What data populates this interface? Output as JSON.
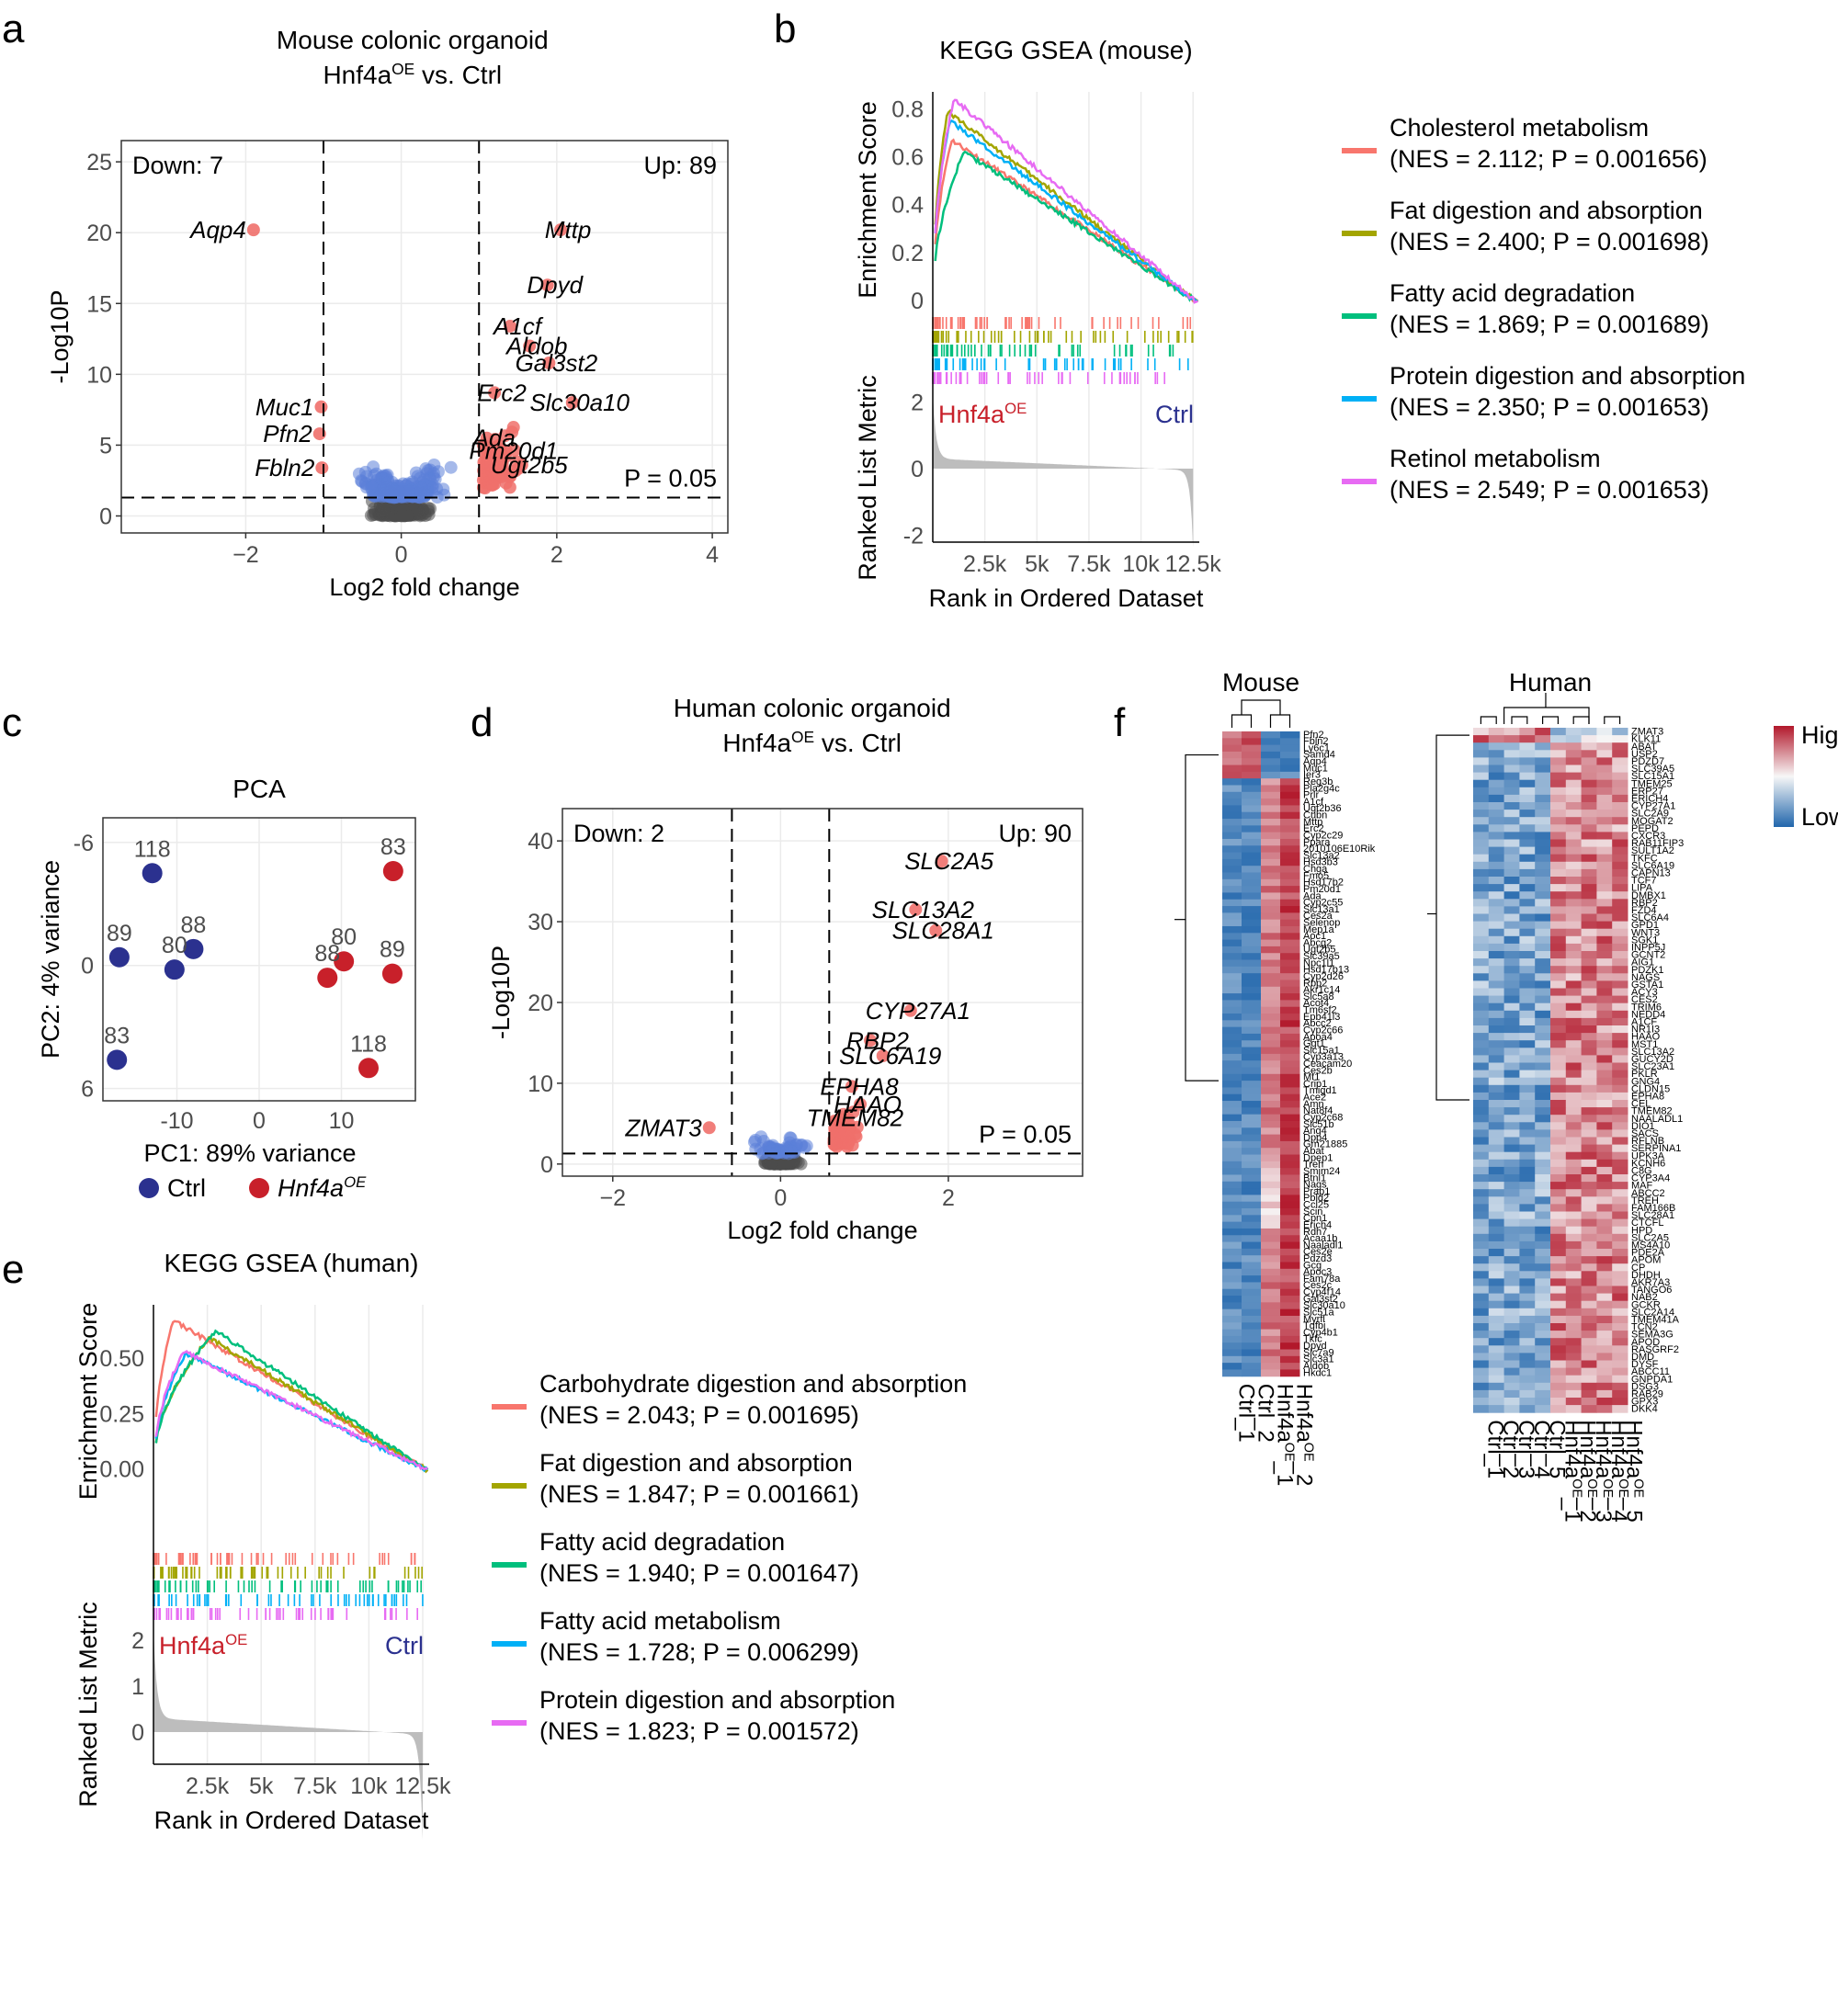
{
  "panel_labels": {
    "a": "a",
    "b": "b",
    "c": "c",
    "d": "d",
    "e": "e",
    "f": "f"
  },
  "colors": {
    "ctrl_blue": "#2b318f",
    "oe_red": "#c8202a",
    "up": "#f0706b",
    "down": "#5b80d9",
    "ns": "#4d4d4d",
    "c_red": "#f8766d",
    "c_olive": "#a3a500",
    "c_green": "#00bf7d",
    "c_blue": "#00b0f6",
    "c_pink": "#e76bf3"
  },
  "chart_data": [
    {
      "id": "a",
      "type": "scatter",
      "title_line1": "Mouse colonic organoid",
      "title_line2_pre": "Hnf4a",
      "title_line2_sup": "OE",
      "title_line2_post": " vs. Ctrl",
      "xlabel": "Log2 fold change",
      "ylabel": "-Log10P",
      "xlim": [
        -3.6,
        4.2
      ],
      "ylim": [
        -1.2,
        26.5
      ],
      "xticks": [
        -2,
        0,
        2,
        4
      ],
      "yticks": [
        0,
        5,
        10,
        15,
        20,
        25
      ],
      "down_text": "Down: 7",
      "up_text": "Up: 89",
      "p_text": "P = 0.05",
      "thresholds": {
        "fc": [
          -1,
          1
        ],
        "p": 1.3
      },
      "labeled_genes": [
        {
          "name": "Aqp4",
          "x": -1.9,
          "y": 20.2
        },
        {
          "name": "Muc1",
          "x": -1.03,
          "y": 7.7
        },
        {
          "name": "Pfn2",
          "x": -1.05,
          "y": 5.8
        },
        {
          "name": "Fbln2",
          "x": -1.02,
          "y": 3.4
        },
        {
          "name": "Mttp",
          "x": 2.05,
          "y": 20.2
        },
        {
          "name": "Dpyd",
          "x": 1.88,
          "y": 16.3
        },
        {
          "name": "A1cf",
          "x": 1.4,
          "y": 13.4
        },
        {
          "name": "Aldob",
          "x": 1.65,
          "y": 12.0
        },
        {
          "name": "Gal3st2",
          "x": 1.9,
          "y": 10.8
        },
        {
          "name": "Erc2",
          "x": 1.2,
          "y": 8.7
        },
        {
          "name": "Slc30a10",
          "x": 2.2,
          "y": 8.0
        },
        {
          "name": "Ada",
          "x": 1.1,
          "y": 5.5
        },
        {
          "name": "Pm20d1",
          "x": 1.35,
          "y": 4.6
        },
        {
          "name": "Ugt2b5",
          "x": 1.55,
          "y": 3.6
        }
      ]
    },
    {
      "id": "b",
      "type": "line",
      "title": "KEGG GSEA (mouse)",
      "ylabel_top": "Enrichment Score",
      "ylabel_bottom": "Ranked List Metric",
      "xlabel": "Rank in Ordered Dataset",
      "es_ylim": [
        -0.03,
        0.87
      ],
      "es_yticks": [
        0,
        0.2,
        0.4,
        0.6,
        0.8
      ],
      "es_yticklabels": [
        "0",
        "0.2",
        "0.4",
        "0.6",
        "0.8"
      ],
      "metric_ylim": [
        -2.2,
        2.2
      ],
      "metric_yticks": [
        -2,
        0,
        2
      ],
      "xlim": [
        0,
        12800
      ],
      "xticks": [
        2500,
        5000,
        7500,
        10000,
        12500
      ],
      "xticklabels": [
        "2.5k",
        "5k",
        "7.5k",
        "10k",
        "12.5k"
      ],
      "left_label_pre": "Hnf4a",
      "left_label_sup": "OE",
      "right_label": "Ctrl",
      "series": [
        {
          "name": "Cholesterol metabolism",
          "stat": "(NES = 2.112; P = 0.001656)",
          "color": "#f8766d",
          "peak": 0.67,
          "peak_rank": 900
        },
        {
          "name": "Fat digestion and absorption",
          "stat": "(NES = 2.400; P = 0.001698)",
          "color": "#a3a500",
          "peak": 0.79,
          "peak_rank": 700
        },
        {
          "name": "Fatty acid degradation",
          "stat": "(NES = 1.869; P = 0.001689)",
          "color": "#00bf7d",
          "peak": 0.62,
          "peak_rank": 1500
        },
        {
          "name": "Protein digestion and absorption",
          "stat": "(NES = 2.350; P = 0.001653)",
          "color": "#00b0f6",
          "peak": 0.75,
          "peak_rank": 800
        },
        {
          "name": "Retinol metabolism",
          "stat": "(NES = 2.549; P = 0.001653)",
          "color": "#e76bf3",
          "peak": 0.84,
          "peak_rank": 1000
        }
      ]
    },
    {
      "id": "c",
      "type": "scatter",
      "title": "PCA",
      "xlabel": "PC1: 89% variance",
      "ylabel": "PC2: 4% variance",
      "xlim": [
        -19,
        19
      ],
      "ylim": [
        6.6,
        -7.2
      ],
      "xticks": [
        -10,
        0,
        10
      ],
      "yticks": [
        -6,
        0,
        6
      ],
      "legend": [
        {
          "name": "Ctrl",
          "italic": false
        },
        {
          "name": "Hnf4a",
          "sup": "OE",
          "italic": true
        }
      ],
      "points": [
        {
          "group": "Ctrl",
          "label": "118",
          "x": -13,
          "y": -4.5
        },
        {
          "group": "Ctrl",
          "label": "88",
          "x": -8,
          "y": -0.8
        },
        {
          "group": "Ctrl",
          "label": "89",
          "x": -17,
          "y": -0.4
        },
        {
          "group": "Ctrl",
          "label": "80",
          "x": -10.3,
          "y": 0.2
        },
        {
          "group": "Ctrl",
          "label": "83",
          "x": -17.3,
          "y": 4.6
        },
        {
          "group": "Hnf4a",
          "label": "83",
          "x": 16.3,
          "y": -4.6
        },
        {
          "group": "Hnf4a",
          "label": "80",
          "x": 10.3,
          "y": -0.2
        },
        {
          "group": "Hnf4a",
          "label": "89",
          "x": 16.2,
          "y": 0.4
        },
        {
          "group": "Hnf4a",
          "label": "88",
          "x": 8.3,
          "y": 0.6
        },
        {
          "group": "Hnf4a",
          "label": "118",
          "x": 13.3,
          "y": 5.0
        }
      ]
    },
    {
      "id": "d",
      "type": "scatter",
      "title_line1": "Human colonic organoid",
      "title_line2_pre": "Hnf4a",
      "title_line2_sup": "OE",
      "title_line2_post": " vs. Ctrl",
      "xlabel": "Log2 fold change",
      "ylabel": "-Log10P",
      "xlim": [
        -2.6,
        3.6
      ],
      "ylim": [
        -1.5,
        44
      ],
      "xticks": [
        -2,
        0,
        2
      ],
      "yticks": [
        0,
        10,
        20,
        30,
        40
      ],
      "down_text": "Down: 2",
      "up_text": "Up: 90",
      "p_text": "P = 0.05",
      "thresholds": {
        "fc": [
          -0.58,
          0.58
        ],
        "p": 1.3
      },
      "labeled_genes": [
        {
          "name": "SLC2A5",
          "x": 1.92,
          "y": 37.5
        },
        {
          "name": "SLC13A2",
          "x": 1.61,
          "y": 31.5
        },
        {
          "name": "SLC28A1",
          "x": 1.85,
          "y": 28.9
        },
        {
          "name": "CYP27A1",
          "x": 1.55,
          "y": 19.0
        },
        {
          "name": "RBP2",
          "x": 1.07,
          "y": 15.3
        },
        {
          "name": "SLC6A19",
          "x": 1.22,
          "y": 13.4
        },
        {
          "name": "EPHA8",
          "x": 0.85,
          "y": 9.6
        },
        {
          "name": "HAAO",
          "x": 0.95,
          "y": 7.4
        },
        {
          "name": "TMEM82",
          "x": 0.8,
          "y": 5.7
        },
        {
          "name": "ZMAT3",
          "x": -0.85,
          "y": 4.5
        }
      ]
    },
    {
      "id": "e",
      "type": "line",
      "title": "KEGG GSEA (human)",
      "ylabel_top": "Enrichment Score",
      "ylabel_bottom": "Ranked List Metric",
      "xlabel": "Rank in Ordered Dataset",
      "es_ylim": [
        -0.13,
        0.74
      ],
      "es_yticks": [
        0,
        0.25,
        0.5
      ],
      "es_yticklabels": [
        "0.00",
        "0.25",
        "0.50"
      ],
      "metric_ylim": [
        -0.7,
        2.3
      ],
      "metric_yticks": [
        0,
        1,
        2
      ],
      "xlim": [
        0,
        12800
      ],
      "xticks": [
        2500,
        5000,
        7500,
        10000,
        12500
      ],
      "xticklabels": [
        "2.5k",
        "5k",
        "7.5k",
        "10k",
        "12.5k"
      ],
      "left_label_pre": "Hnf4a",
      "left_label_sup": "OE",
      "right_label": "Ctrl",
      "series": [
        {
          "name": "Carbohydrate digestion and absorption",
          "stat": "(NES = 2.043; P = 0.001695)",
          "color": "#f8766d",
          "peak": 0.67,
          "peak_rank": 900
        },
        {
          "name": "Fat digestion and absorption",
          "stat": "(NES = 1.847; P = 0.001661)",
          "color": "#a3a500",
          "peak": 0.59,
          "peak_rank": 2600
        },
        {
          "name": "Fatty acid degradation",
          "stat": "(NES = 1.940; P = 0.001647)",
          "color": "#00bf7d",
          "peak": 0.62,
          "peak_rank": 2900
        },
        {
          "name": "Fatty acid metabolism",
          "stat": "(NES = 1.728; P = 0.006299)",
          "color": "#00b0f6",
          "peak": 0.52,
          "peak_rank": 1500
        },
        {
          "name": "Protein digestion and absorption",
          "stat": "(NES = 1.823; P = 0.001572)",
          "color": "#e76bf3",
          "peak": 0.53,
          "peak_rank": 1400
        }
      ]
    },
    {
      "id": "f",
      "type": "heatmap",
      "mouse_title": "Mouse",
      "human_title": "Human",
      "legend_high": "High",
      "legend_low": "Low",
      "mouse_columns": [
        {
          "base": "Ctrl_1"
        },
        {
          "base": "Ctrl_2"
        },
        {
          "base": "Hnf4a",
          "sup": "OE",
          "suffix": "_1"
        },
        {
          "base": "Hnf4a",
          "sup": "OE",
          "suffix": "_2"
        }
      ],
      "human_columns": [
        {
          "base": "Ctrl_1"
        },
        {
          "base": "Ctrl_2"
        },
        {
          "base": "Ctrl_3"
        },
        {
          "base": "Ctrl_4"
        },
        {
          "base": "Ctrl_5"
        },
        {
          "base": "Hnf4a",
          "sup": "OE",
          "suffix": "_1"
        },
        {
          "base": "Hnf4a",
          "sup": "OE",
          "suffix": "_2"
        },
        {
          "base": "Hnf4a",
          "sup": "OE",
          "suffix": "_3"
        },
        {
          "base": "Hnf4a",
          "sup": "OE",
          "suffix": "_4"
        },
        {
          "base": "Hnf4a",
          "sup": "OE",
          "suffix": "_5"
        }
      ],
      "mouse_genes": [
        "Pfn2",
        "Fbln2",
        "Ly6c1",
        "Samd4",
        "Aqp4",
        "Muc1",
        "Ier3",
        "Reg3b",
        "Pla2g4c",
        "Prlr",
        "A1cf",
        "Ugt2b36",
        "Cubn",
        "Mttp",
        "Erc2",
        "Cyp2c29",
        "Ppara",
        "2010106E10Rik",
        "Slc13a2",
        "Hsd3b3",
        "Chga",
        "Fmo5",
        "Hsd17b2",
        "Pm20d1",
        "Ada",
        "Cyp2c55",
        "Slc13a1",
        "Ces2a",
        "Selenop",
        "Mep1a",
        "Aoc1",
        "Abcg2",
        "Ugt2b5",
        "Slc39a5",
        "Npc1l1",
        "Hsd17b13",
        "Cyp2d26",
        "Rbp2",
        "Akr1c14",
        "Slc5a8",
        "Acot4",
        "Tm6sf2",
        "Epb41l3",
        "Abcc2",
        "Cyp2c66",
        "Apoa4",
        "Ggt1",
        "Slc15a1",
        "Cyp3a13",
        "Ceacam20",
        "Ces2b",
        "Mt1",
        "Crip1",
        "Tmigd1",
        "Ace2",
        "Amn",
        "Nat8f4",
        "Cyp2c68",
        "Slc51b",
        "Ang4",
        "Dpp4",
        "Gm21885",
        "Abat",
        "Dpep1",
        "Treh",
        "Smim24",
        "Btnl1",
        "Nags",
        "Prap1",
        "Pbld2",
        "Ccl25",
        "Scin",
        "Cpn1",
        "Erich4",
        "Rdh7",
        "Acaa1b",
        "Naaladl1",
        "Ces2e",
        "Pdzd3",
        "Gcg",
        "Apoc3",
        "Fam78a",
        "Ces2c",
        "Cyp4f14",
        "Gal3st2",
        "Slc30a10",
        "Slc51a",
        "Myrfl",
        "Tgfbi",
        "Cyp4b1",
        "Tkfc",
        "Dpyd",
        "Slc7a9",
        "Slc3a1",
        "Aldob",
        "Hkdc1"
      ],
      "human_genes": [
        "ZMAT3",
        "KLK11",
        "ABAT",
        "USP2",
        "PDZD7",
        "SLC39A5",
        "SLC15A1",
        "TMEM25",
        "ERP27",
        "ERICH4",
        "CYP27A1",
        "SLC2A9",
        "MOGAT2",
        "PEPD",
        "CXCR3",
        "RAB11FIP3",
        "SULT1A2",
        "TKFC",
        "SLC6A19",
        "CAPN13",
        "TCF7",
        "LIPA",
        "DMBX1",
        "RBP2",
        "FZD4",
        "SLC6A4",
        "GPD1",
        "WNT3",
        "SGK1",
        "INPP5J",
        "GCNT2",
        "AIG1",
        "PDZK1",
        "NAGS",
        "GSTA1",
        "ACY3",
        "CES2",
        "TRIM6",
        "NEDD4",
        "A1CF",
        "NR1I3",
        "HAAO",
        "MST1",
        "SLC13A2",
        "GUCY2D",
        "SLC23A1",
        "PKLR",
        "GNG4",
        "CLDN15",
        "EPHA8",
        "CEL",
        "TMEM82",
        "NAALADL1",
        "DIO1",
        "SACS",
        "RFLNB",
        "SERPINA1",
        "UPK3A",
        "KCNH6",
        "C8G",
        "CYP3A4",
        "MAF",
        "ABCC2",
        "TREH",
        "FAM166B",
        "SLC28A1",
        "CTCFL",
        "HPD",
        "SLC2A5",
        "MS4A10",
        "PDE2A",
        "APOM",
        "CP",
        "DHDH",
        "AKR7A3",
        "TANGO6",
        "NAB2",
        "GCKR",
        "SLC2A14",
        "TMEM41A",
        "TCN2",
        "SEMA3G",
        "APOD",
        "RASGRF2",
        "DMD",
        "DYSF",
        "ABCC11",
        "GNPDA1",
        "DSG3",
        "RAB29",
        "GPX3",
        "DKK4"
      ]
    }
  ]
}
